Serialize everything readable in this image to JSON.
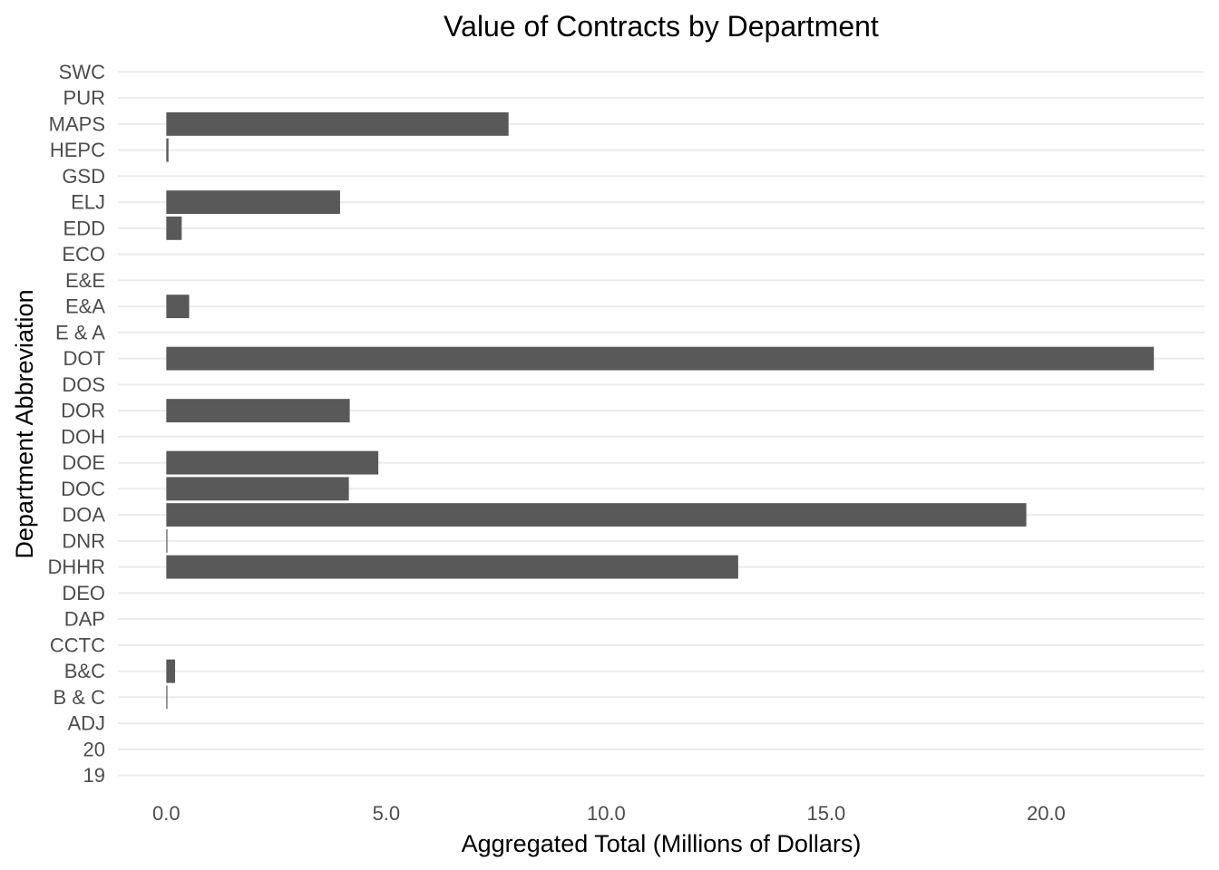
{
  "chart_data": {
    "type": "bar",
    "orientation": "horizontal",
    "title": "Value of Contracts by Department",
    "xlabel": "Aggregated Total (Millions of Dollars)",
    "ylabel": "Department Abbreviation",
    "xlim": [
      -1.1,
      23.6
    ],
    "x_ticks": [
      0,
      5,
      10,
      15,
      20
    ],
    "x_tick_labels": [
      "0.0",
      "5.0",
      "10.0",
      "15.0",
      "20.0"
    ],
    "grid": true,
    "bar_color": "#595959",
    "grid_color": "#ebebeb",
    "categories": [
      "19",
      "20",
      "ADJ",
      "B & C",
      "B&C",
      "CCTC",
      "DAP",
      "DEO",
      "DHHR",
      "DNR",
      "DOA",
      "DOC",
      "DOE",
      "DOH",
      "DOR",
      "DOS",
      "DOT",
      "E & A",
      "E&A",
      "E&E",
      "ECO",
      "EDD",
      "ELJ",
      "GSD",
      "HEPC",
      "MAPS",
      "PUR",
      "SWC"
    ],
    "values": [
      0,
      0,
      0,
      0.02,
      0.2,
      0,
      0,
      0,
      13.0,
      0.02,
      19.55,
      4.15,
      4.82,
      0,
      4.17,
      0,
      22.45,
      0,
      0.52,
      0,
      0,
      0.35,
      3.95,
      0,
      0.05,
      7.78,
      0,
      0
    ]
  }
}
